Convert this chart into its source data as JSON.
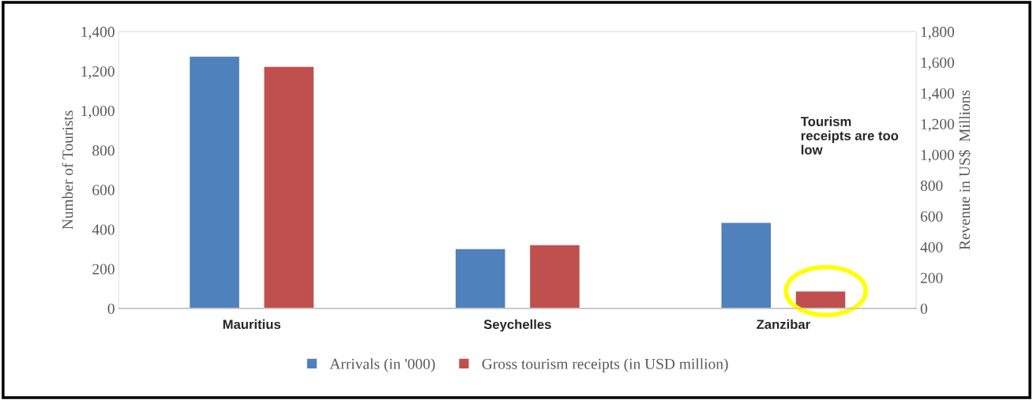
{
  "chart_data": {
    "type": "bar",
    "ylabel": "Number of Tourists",
    "y2label": "Revenue in US$  Millions",
    "categories": [
      "Mauritius",
      "Seychelles",
      "Zanzibar"
    ],
    "series": [
      {
        "name": "Arrivals (in '000)",
        "color": "#4f81bd",
        "values": [
          1276,
          303,
          435
        ]
      },
      {
        "name": "Gross tourism receipts (in USD million)",
        "color": "#c0504d",
        "values": [
          1574,
          415,
          113
        ],
        "axis": "y2"
      }
    ],
    "ylim": [
      0,
      1400
    ],
    "yticks": [
      0,
      {
        "value": 200,
        "label": "200"
      },
      {
        "value": 400,
        "label": "400"
      },
      {
        "value": 600,
        "label": "600"
      },
      {
        "value": 800,
        "label": "800"
      },
      {
        "value": 1000,
        "label": "1,000"
      },
      {
        "value": 1200,
        "label": "1,200"
      },
      {
        "value": 1400,
        "label": "1,400"
      }
    ],
    "y2lim": [
      0,
      1800
    ],
    "y2ticks": [
      0,
      200,
      400,
      600,
      800,
      {
        "value": 1000,
        "label": "1,000"
      },
      {
        "value": 1200,
        "label": "1,200"
      },
      {
        "value": 1400,
        "label": "1,400"
      },
      {
        "value": 1600,
        "label": "1,600"
      },
      {
        "value": 1800,
        "label": "1,800"
      }
    ],
    "annotations": [
      "Tourism receipts are too low"
    ],
    "legend": "bottom",
    "grid": false
  }
}
